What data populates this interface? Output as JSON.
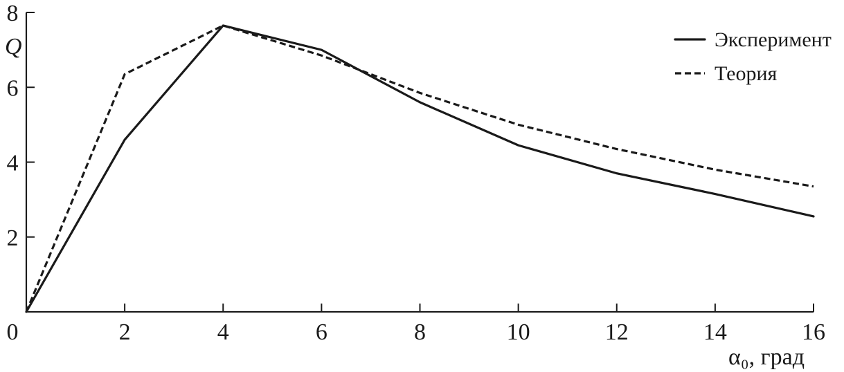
{
  "chart_data": {
    "type": "line",
    "title": "",
    "ylabel": "Q",
    "xlabel": "α₀, град",
    "xlim": [
      0,
      16
    ],
    "ylim": [
      0,
      8
    ],
    "x_ticks": [
      0,
      2,
      4,
      6,
      8,
      10,
      12,
      14,
      16
    ],
    "x_tick_labels": [
      "0",
      "2",
      "4",
      "6",
      "8",
      "10",
      "12",
      "14",
      "16"
    ],
    "y_ticks": [
      2,
      4,
      6,
      8
    ],
    "y_tick_labels": [
      "2",
      "4",
      "6",
      "8"
    ],
    "grid": false,
    "legend_position": "top-right",
    "series": [
      {
        "name": "Эксперимент",
        "style": "solid",
        "x": [
          0,
          2,
          4,
          6,
          8,
          10,
          12,
          14,
          16
        ],
        "y": [
          0,
          4.6,
          7.65,
          7.0,
          5.6,
          4.45,
          3.7,
          3.15,
          2.55
        ]
      },
      {
        "name": "Теория",
        "style": "dashed",
        "x": [
          0,
          2,
          4,
          6,
          8,
          10,
          12,
          14,
          16
        ],
        "y": [
          0,
          6.35,
          7.65,
          6.85,
          5.85,
          5.0,
          4.35,
          3.8,
          3.35
        ]
      }
    ]
  }
}
